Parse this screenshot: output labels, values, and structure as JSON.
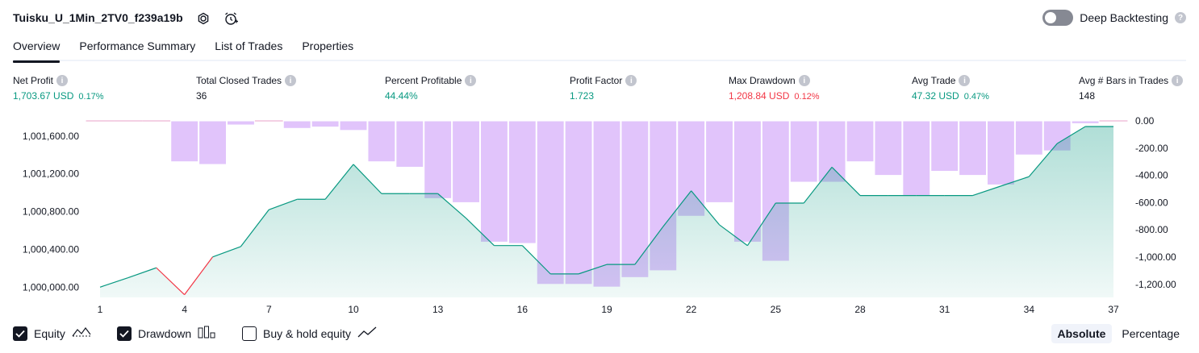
{
  "header": {
    "strategy_name": "Tuisku_U_1Min_2TV0_f239a19b",
    "settings_icon": "settings-gear-icon",
    "alert_icon": "add-alert-clock-icon",
    "deep_backtesting_label": "Deep Backtesting",
    "deep_backtesting_enabled": false,
    "help_icon": "question-icon"
  },
  "tabs": [
    {
      "label": "Overview",
      "active": true
    },
    {
      "label": "Performance Summary",
      "active": false
    },
    {
      "label": "List of Trades",
      "active": false
    },
    {
      "label": "Properties",
      "active": false
    }
  ],
  "metrics": [
    {
      "label": "Net Profit",
      "value": "1,703.67 USD",
      "pct": "0.17%",
      "color": "green"
    },
    {
      "label": "Total Closed Trades",
      "value": "36",
      "pct": "",
      "color": "plain"
    },
    {
      "label": "Percent Profitable",
      "value": "44.44%",
      "pct": "",
      "color": "green"
    },
    {
      "label": "Profit Factor",
      "value": "1.723",
      "pct": "",
      "color": "green"
    },
    {
      "label": "Max Drawdown",
      "value": "1,208.84 USD",
      "pct": "0.12%",
      "color": "red"
    },
    {
      "label": "Avg Trade",
      "value": "47.32 USD",
      "pct": "0.47%",
      "color": "green"
    },
    {
      "label": "Avg # Bars in Trades",
      "value": "148",
      "pct": "",
      "color": "plain"
    }
  ],
  "chart_data": {
    "type": "line",
    "x_ticks": [
      1,
      4,
      7,
      10,
      13,
      16,
      19,
      22,
      25,
      28,
      31,
      34,
      37
    ],
    "left_axis": {
      "ticks": [
        "1,000,000.00",
        "1,000,400.00",
        "1,000,800.00",
        "1,001,200.00",
        "1,001,600.00"
      ],
      "range": [
        999900,
        1001760
      ]
    },
    "right_axis": {
      "ticks": [
        "0.00",
        "-200.00",
        "-400.00",
        "-600.00",
        "-800.00",
        "-1,000.00",
        "-1,200.00"
      ],
      "range": [
        -1290,
        0
      ]
    },
    "series": [
      {
        "name": "Equity",
        "kind": "area",
        "x": [
          1,
          2,
          3,
          4,
          5,
          6,
          7,
          8,
          9,
          10,
          11,
          12,
          13,
          14,
          15,
          16,
          17,
          18,
          19,
          20,
          21,
          22,
          23,
          24,
          25,
          26,
          27,
          28,
          29,
          30,
          31,
          32,
          33,
          34,
          35,
          36,
          37
        ],
        "values": [
          1000000,
          1000100,
          1000205,
          999920,
          1000320,
          1000430,
          1000820,
          1000930,
          1000930,
          1001300,
          1000990,
          1000990,
          1000990,
          1000730,
          1000440,
          1000440,
          1000140,
          1000140,
          1000240,
          1000240,
          1000640,
          1001020,
          1000660,
          1000440,
          1000890,
          1000890,
          1001270,
          1000970,
          1000970,
          1000970,
          1000970,
          1000970,
          1001070,
          1001170,
          1001520,
          1001700,
          1001700
        ],
        "color": "#089981"
      },
      {
        "name": "Drawdown",
        "kind": "bar",
        "x": [
          1,
          2,
          3,
          4,
          5,
          6,
          7,
          8,
          9,
          10,
          11,
          12,
          13,
          14,
          15,
          16,
          17,
          18,
          19,
          20,
          21,
          22,
          23,
          24,
          25,
          26,
          27,
          28,
          29,
          30,
          31,
          32,
          33,
          34,
          35,
          36,
          37
        ],
        "values": [
          0,
          0,
          0,
          -300,
          -320,
          -30,
          0,
          -55,
          -45,
          -70,
          -300,
          -340,
          -570,
          -600,
          -890,
          -900,
          -1200,
          -1200,
          -1220,
          -1150,
          -1100,
          -700,
          -600,
          -890,
          -1030,
          -450,
          -450,
          -300,
          -400,
          -550,
          -370,
          -400,
          -470,
          -250,
          -220,
          -20,
          0
        ],
        "color": "#e1c4fb"
      }
    ]
  },
  "footer": {
    "checks": [
      {
        "label": "Equity",
        "checked": true,
        "icon": "equity-line-icon"
      },
      {
        "label": "Drawdown",
        "checked": true,
        "icon": "drawdown-bars-icon"
      },
      {
        "label": "Buy & hold equity",
        "checked": false,
        "icon": "buy-hold-line-icon"
      }
    ],
    "mode_buttons": [
      {
        "label": "Absolute",
        "active": true
      },
      {
        "label": "Percentage",
        "active": false
      }
    ]
  }
}
